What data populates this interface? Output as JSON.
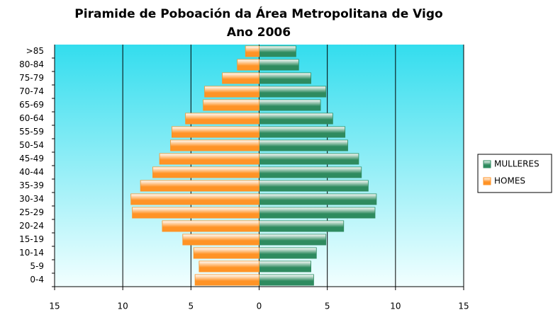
{
  "chart_data": {
    "type": "bar",
    "orientation": "horizontal",
    "layout": "pyramid",
    "title": [
      "Piramide de Poboación da Área Metropolitana de Vigo",
      "Ano 2006"
    ],
    "categories": [
      "0-4",
      "5-9",
      "10-14",
      "15-19",
      "20-24",
      "25-29",
      "30-34",
      "35-39",
      "40-44",
      "45-49",
      "50-54",
      "55-59",
      "60-64",
      "65-69",
      "70-74",
      "75-79",
      "80-84",
      ">85"
    ],
    "series": [
      {
        "name": "MULLERES",
        "color": "#2e8b5f",
        "values": [
          4.0,
          3.8,
          4.2,
          4.9,
          6.2,
          8.5,
          8.6,
          8.0,
          7.5,
          7.3,
          6.5,
          6.3,
          5.4,
          4.5,
          4.9,
          3.8,
          2.9,
          2.7
        ]
      },
      {
        "name": "HOMES",
        "color": "#ff9326",
        "values": [
          -4.7,
          -4.4,
          -4.8,
          -5.6,
          -7.1,
          -9.3,
          -9.4,
          -8.7,
          -7.8,
          -7.3,
          -6.5,
          -6.4,
          -5.4,
          -4.1,
          -4.0,
          -2.7,
          -1.6,
          -1.0
        ]
      }
    ],
    "xlim": [
      -15,
      15
    ],
    "xticks": [
      {
        "value": -15,
        "label": "15"
      },
      {
        "value": -10,
        "label": "10"
      },
      {
        "value": -5,
        "label": "5"
      },
      0,
      5,
      10,
      15
    ],
    "grid": true,
    "legend": "right"
  }
}
